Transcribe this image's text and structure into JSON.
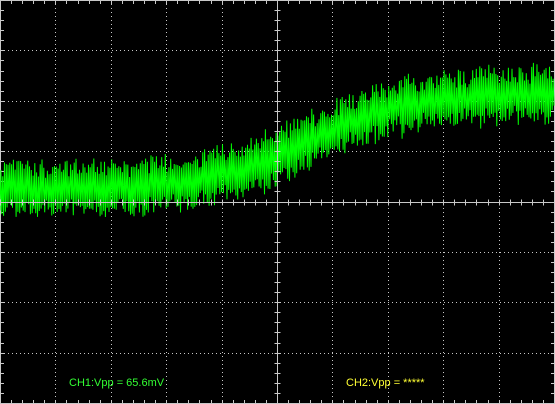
{
  "scope": {
    "grid": {
      "divisions_x": 10,
      "divisions_y": 8,
      "minor_per_division": 5,
      "color": "#c8c8c8",
      "background": "#000000"
    },
    "ch1": {
      "label": "CH1:Vpp = 65.6mV",
      "color": "#33ff33",
      "trace_color": "#00ff00",
      "baseline_start_div": 3.75,
      "baseline_end_div": 1.85,
      "transition_center_div": 5.6,
      "noise_pp_div": 1.15,
      "samples": 620
    },
    "ch2": {
      "label": "CH2:Vpp = *****",
      "color": "#ffff33"
    }
  }
}
